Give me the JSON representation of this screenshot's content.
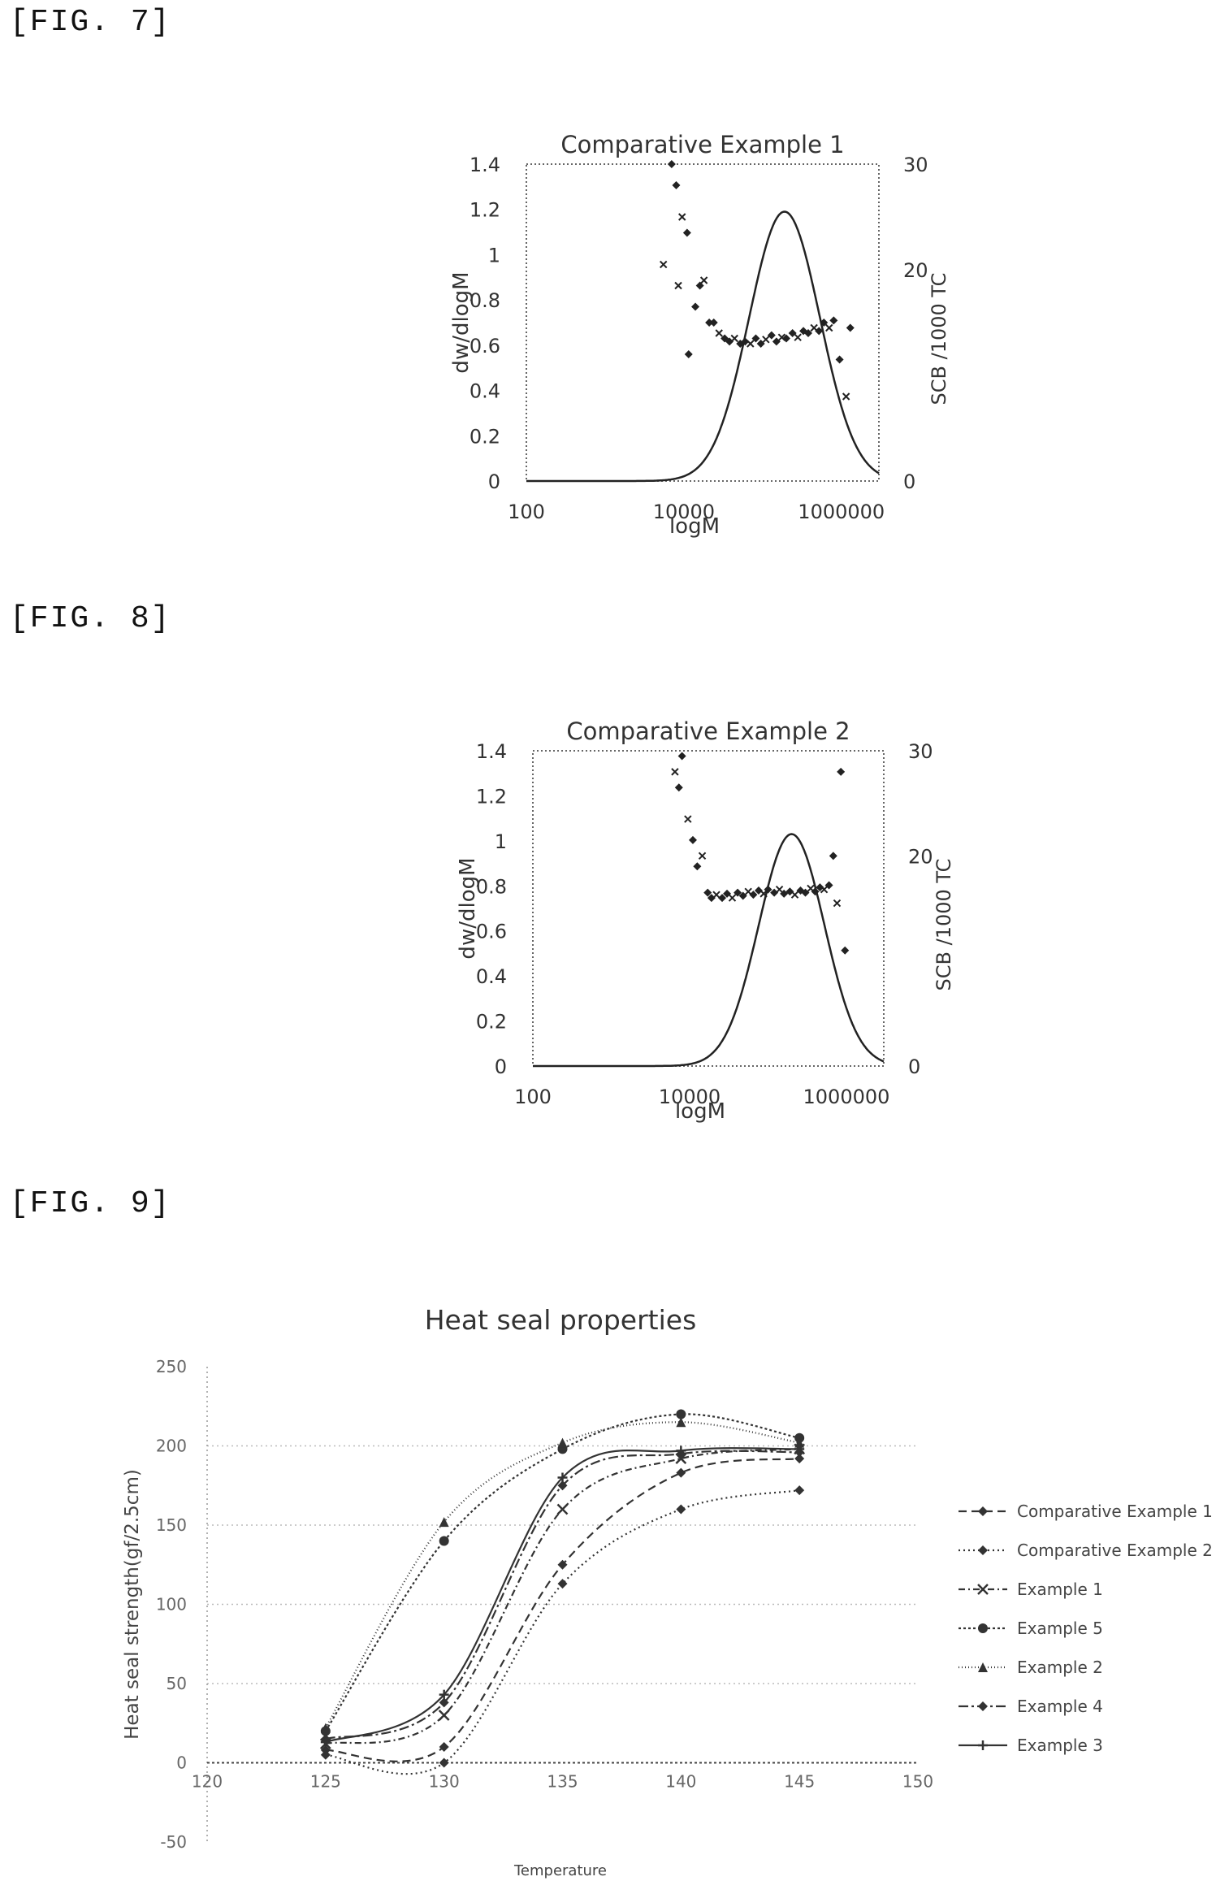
{
  "figures": [
    {
      "label": "[FIG. 7]"
    },
    {
      "label": "[FIG. 8]"
    },
    {
      "label": "[FIG. 9]"
    }
  ],
  "chart_data": [
    {
      "type": "line",
      "title": "Comparative Example 1",
      "xlabel": "logM",
      "ylabel": "dw/dlogM",
      "y2label": "SCB /1000 TC",
      "x_scale": "log",
      "xlim": [
        100,
        3000000
      ],
      "ylim": [
        0,
        1.4
      ],
      "y2lim": [
        0,
        30
      ],
      "x_ticks": [
        {
          "v": 100,
          "label": "100"
        },
        {
          "v": 10000,
          "label": "10000"
        },
        {
          "v": 1000000,
          "label": "1000000"
        }
      ],
      "y_ticks": [
        {
          "v": 0,
          "label": "0"
        },
        {
          "v": 0.2,
          "label": "0.2"
        },
        {
          "v": 0.4,
          "label": "0.4"
        },
        {
          "v": 0.6,
          "label": "0.6"
        },
        {
          "v": 0.8,
          "label": "0.8"
        },
        {
          "v": 1,
          "label": "1"
        },
        {
          "v": 1.2,
          "label": "1.2"
        },
        {
          "v": 1.4,
          "label": "1.4"
        }
      ],
      "y2_ticks": [
        {
          "v": 0,
          "label": "0"
        },
        {
          "v": 10,
          "label": ""
        },
        {
          "v": 20,
          "label": "20"
        },
        {
          "v": 30,
          "label": "30"
        }
      ],
      "curve": {
        "name": "dw/dlogM",
        "peak_x": 190000,
        "peak_y": 1.19,
        "sigma_log": 0.45
      },
      "scb_points": [
        {
          "x": 5500,
          "y": 20.5
        },
        {
          "x": 7000,
          "y": 30
        },
        {
          "x": 8000,
          "y": 28
        },
        {
          "x": 9500,
          "y": 25
        },
        {
          "x": 11000,
          "y": 23.5
        },
        {
          "x": 11500,
          "y": 12
        },
        {
          "x": 8500,
          "y": 18.5
        },
        {
          "x": 14000,
          "y": 16.5
        },
        {
          "x": 16000,
          "y": 18.5
        },
        {
          "x": 18000,
          "y": 19
        },
        {
          "x": 21000,
          "y": 15
        },
        {
          "x": 24000,
          "y": 15
        },
        {
          "x": 28000,
          "y": 14
        },
        {
          "x": 33000,
          "y": 13.5
        },
        {
          "x": 38000,
          "y": 13.2
        },
        {
          "x": 44000,
          "y": 13.5
        },
        {
          "x": 52000,
          "y": 13
        },
        {
          "x": 60000,
          "y": 13.2
        },
        {
          "x": 70000,
          "y": 13
        },
        {
          "x": 82000,
          "y": 13.5
        },
        {
          "x": 95000,
          "y": 13
        },
        {
          "x": 110000,
          "y": 13.4
        },
        {
          "x": 130000,
          "y": 13.8
        },
        {
          "x": 150000,
          "y": 13.2
        },
        {
          "x": 175000,
          "y": 13.6
        },
        {
          "x": 200000,
          "y": 13.5
        },
        {
          "x": 240000,
          "y": 14
        },
        {
          "x": 280000,
          "y": 13.6
        },
        {
          "x": 330000,
          "y": 14.2
        },
        {
          "x": 380000,
          "y": 14
        },
        {
          "x": 450000,
          "y": 14.5
        },
        {
          "x": 520000,
          "y": 14.2
        },
        {
          "x": 600000,
          "y": 15
        },
        {
          "x": 700000,
          "y": 14.5
        },
        {
          "x": 800000,
          "y": 15.2
        },
        {
          "x": 950000,
          "y": 11.5
        },
        {
          "x": 1150000,
          "y": 8
        },
        {
          "x": 1300000,
          "y": 14.5
        }
      ]
    },
    {
      "type": "line",
      "title": "Comparative Example 2",
      "xlabel": "logM",
      "ylabel": "dw/dlogM",
      "y2label": "SCB /1000 TC",
      "x_scale": "log",
      "xlim": [
        100,
        3000000
      ],
      "ylim": [
        0,
        1.4
      ],
      "y2lim": [
        0,
        30
      ],
      "x_ticks": [
        {
          "v": 100,
          "label": "100"
        },
        {
          "v": 10000,
          "label": "10000"
        },
        {
          "v": 1000000,
          "label": "1000000"
        }
      ],
      "y_ticks": [
        {
          "v": 0,
          "label": "0"
        },
        {
          "v": 0.2,
          "label": "0.2"
        },
        {
          "v": 0.4,
          "label": "0.4"
        },
        {
          "v": 0.6,
          "label": "0.6"
        },
        {
          "v": 0.8,
          "label": "0.8"
        },
        {
          "v": 1,
          "label": "1"
        },
        {
          "v": 1.2,
          "label": "1.2"
        },
        {
          "v": 1.4,
          "label": "1.4"
        }
      ],
      "y2_ticks": [
        {
          "v": 0,
          "label": "0"
        },
        {
          "v": 10,
          "label": ""
        },
        {
          "v": 20,
          "label": "20"
        },
        {
          "v": 30,
          "label": "30"
        }
      ],
      "curve": {
        "name": "dw/dlogM",
        "peak_x": 200000,
        "peak_y": 1.03,
        "sigma_log": 0.42
      },
      "scb_points": [
        {
          "x": 6500,
          "y": 28
        },
        {
          "x": 7300,
          "y": 26.5
        },
        {
          "x": 8000,
          "y": 29.5
        },
        {
          "x": 9500,
          "y": 23.5
        },
        {
          "x": 11000,
          "y": 21.5
        },
        {
          "x": 12500,
          "y": 19
        },
        {
          "x": 14500,
          "y": 20
        },
        {
          "x": 17000,
          "y": 16.5
        },
        {
          "x": 19000,
          "y": 16
        },
        {
          "x": 22000,
          "y": 16.3
        },
        {
          "x": 26000,
          "y": 16
        },
        {
          "x": 30000,
          "y": 16.4
        },
        {
          "x": 35000,
          "y": 16
        },
        {
          "x": 41000,
          "y": 16.5
        },
        {
          "x": 48000,
          "y": 16.2
        },
        {
          "x": 56000,
          "y": 16.6
        },
        {
          "x": 65000,
          "y": 16.3
        },
        {
          "x": 76000,
          "y": 16.7
        },
        {
          "x": 88000,
          "y": 16.4
        },
        {
          "x": 100000,
          "y": 16.8
        },
        {
          "x": 120000,
          "y": 16.5
        },
        {
          "x": 140000,
          "y": 16.8
        },
        {
          "x": 160000,
          "y": 16.4
        },
        {
          "x": 190000,
          "y": 16.6
        },
        {
          "x": 220000,
          "y": 16.3
        },
        {
          "x": 260000,
          "y": 16.7
        },
        {
          "x": 300000,
          "y": 16.5
        },
        {
          "x": 350000,
          "y": 16.9
        },
        {
          "x": 400000,
          "y": 16.6
        },
        {
          "x": 460000,
          "y": 17
        },
        {
          "x": 520000,
          "y": 16.8
        },
        {
          "x": 600000,
          "y": 17.2
        },
        {
          "x": 680000,
          "y": 20
        },
        {
          "x": 760000,
          "y": 15.5
        },
        {
          "x": 850000,
          "y": 28
        },
        {
          "x": 960000,
          "y": 11
        }
      ]
    },
    {
      "type": "line",
      "title": "Heat seal properties",
      "xlabel": "Temperature",
      "ylabel": "Heat seal strength(gf/2.5cm)",
      "xlim": [
        120,
        150
      ],
      "ylim": [
        -50,
        250
      ],
      "x_ticks": [
        {
          "v": 120,
          "label": "120"
        },
        {
          "v": 125,
          "label": "125"
        },
        {
          "v": 130,
          "label": "130"
        },
        {
          "v": 135,
          "label": "135"
        },
        {
          "v": 140,
          "label": "140"
        },
        {
          "v": 145,
          "label": "145"
        },
        {
          "v": 150,
          "label": "150"
        }
      ],
      "y_ticks": [
        {
          "v": -50,
          "label": "-50"
        },
        {
          "v": 0,
          "label": "0"
        },
        {
          "v": 50,
          "label": "50"
        },
        {
          "v": 100,
          "label": "100"
        },
        {
          "v": 150,
          "label": "150"
        },
        {
          "v": 200,
          "label": "200"
        },
        {
          "v": 250,
          "label": "250"
        }
      ],
      "grid": true,
      "legend_position": "right",
      "x": [
        125,
        130,
        135,
        140,
        145
      ],
      "series": [
        {
          "name": "Comparative Example 1",
          "dash": "10,6",
          "marker": "diamond",
          "values": [
            8,
            10,
            125,
            183,
            192
          ]
        },
        {
          "name": "Comparative Example 2",
          "dash": "2,4",
          "marker": "diamond",
          "values": [
            5,
            0,
            113,
            160,
            172
          ]
        },
        {
          "name": "Example 1",
          "dash": "8,4,2,4",
          "marker": "x",
          "values": [
            12,
            30,
            160,
            192,
            198
          ]
        },
        {
          "name": "Example 5",
          "dash": "3,3",
          "marker": "circle",
          "values": [
            20,
            140,
            198,
            220,
            205
          ]
        },
        {
          "name": "Example 2",
          "dash": "1,3",
          "marker": "triangle",
          "values": [
            22,
            152,
            202,
            215,
            202
          ]
        },
        {
          "name": "Example 4",
          "dash": "12,4,3,4",
          "marker": "diamond",
          "values": [
            15,
            38,
            175,
            195,
            196
          ]
        },
        {
          "name": "Example 3",
          "dash": "",
          "marker": "plus",
          "values": [
            13,
            43,
            180,
            197,
            198
          ]
        }
      ]
    }
  ]
}
